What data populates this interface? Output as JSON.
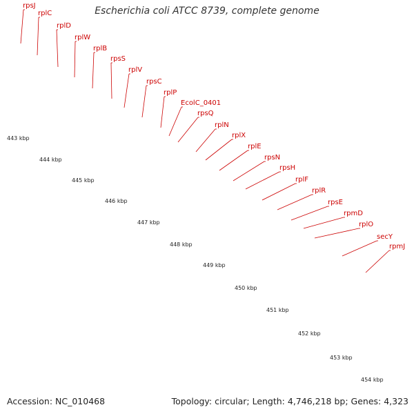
{
  "title": "Escherichia coli ATCC 8739, complete genome",
  "accession": "Accession: NC_010468",
  "topology": "Topology: circular; Length: 4,746,218 bp; Genes: 4,323",
  "gene_labels": [
    "rpsJ",
    "rplC",
    "rplD",
    "rplW",
    "rplB",
    "rpsS",
    "rplV",
    "rpsC",
    "rplP",
    "EcolC_0401",
    "rpsQ",
    "rplN",
    "rplX",
    "rplE",
    "rpsN",
    "rpsH",
    "rplF",
    "rplR",
    "rpsE",
    "rpmD",
    "rplO",
    "secY",
    "rpmJ"
  ],
  "kbp_labels": [
    "443 kbp",
    "444 kbp",
    "445 kbp",
    "446 kbp",
    "447 kbp",
    "448 kbp",
    "449 kbp",
    "450 kbp",
    "451 kbp",
    "452 kbp",
    "453 kbp",
    "454 kbp"
  ],
  "colors": {
    "gene_arrow": "#ee0000",
    "cds_band": "#f0a0a0",
    "highlight_cds": "#aaee44",
    "orange_cds": "#ff8800",
    "label": "#cc0000",
    "tick": "#228822",
    "backbone": "#888888"
  }
}
